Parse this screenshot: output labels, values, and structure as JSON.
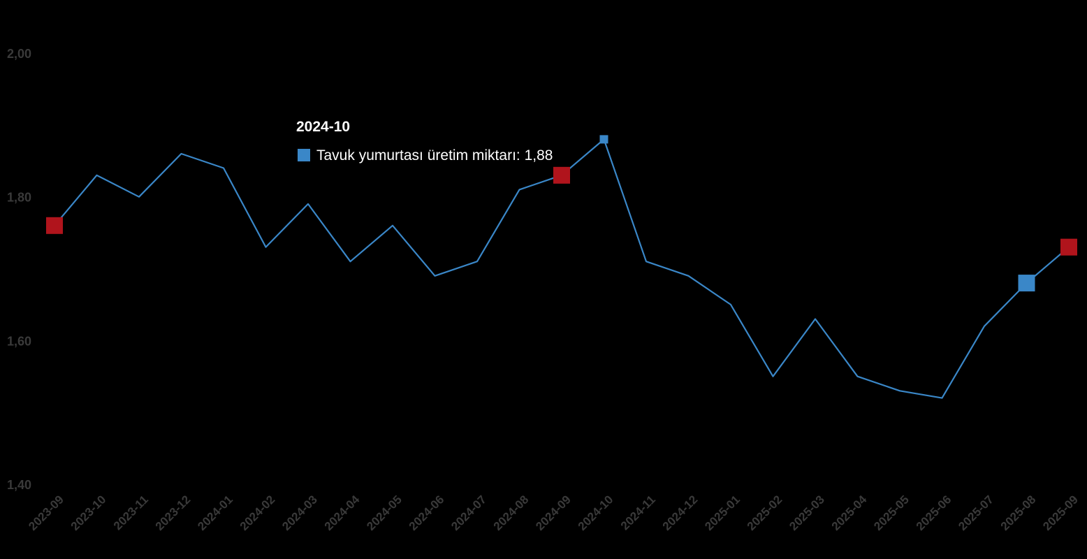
{
  "chart_data": {
    "type": "line",
    "title": "",
    "xlabel": "",
    "ylabel": "",
    "ylim": [
      1.4,
      2.0
    ],
    "y_ticks": [
      "1,40",
      "1,60",
      "1,80",
      "2,00"
    ],
    "y_tick_values": [
      1.4,
      1.6,
      1.8,
      2.0
    ],
    "grid": false,
    "legend": "none",
    "categories": [
      "2023-09",
      "2023-10",
      "2023-11",
      "2023-12",
      "2024-01",
      "2024-02",
      "2024-03",
      "2024-04",
      "2024-05",
      "2024-06",
      "2024-07",
      "2024-08",
      "2024-09",
      "2024-10",
      "2024-11",
      "2024-12",
      "2025-01",
      "2025-02",
      "2025-03",
      "2025-04",
      "2025-05",
      "2025-06",
      "2025-07",
      "2025-08",
      "2025-09"
    ],
    "series": [
      {
        "name": "Tavuk yumurtası üretim miktarı",
        "color": "#3a87c8",
        "values": [
          1.76,
          1.83,
          1.8,
          1.86,
          1.84,
          1.73,
          1.79,
          1.71,
          1.76,
          1.69,
          1.71,
          1.81,
          1.83,
          1.88,
          1.71,
          1.69,
          1.65,
          1.55,
          1.63,
          1.55,
          1.53,
          1.52,
          1.62,
          1.68,
          1.73
        ]
      }
    ],
    "highlight_markers": [
      {
        "category": "2023-09",
        "value": 1.76,
        "color": "#b0141c"
      },
      {
        "category": "2024-09",
        "value": 1.83,
        "color": "#b0141c"
      },
      {
        "category": "2025-08",
        "value": 1.68,
        "color": "#3a87c8"
      },
      {
        "category": "2025-09",
        "value": 1.73,
        "color": "#b0141c"
      }
    ],
    "tooltip": {
      "title": "2024-10",
      "label": "Tavuk yumurtası üretim miktarı: 1,88",
      "category": "2024-10",
      "marker_color": "#3a87c8"
    }
  }
}
